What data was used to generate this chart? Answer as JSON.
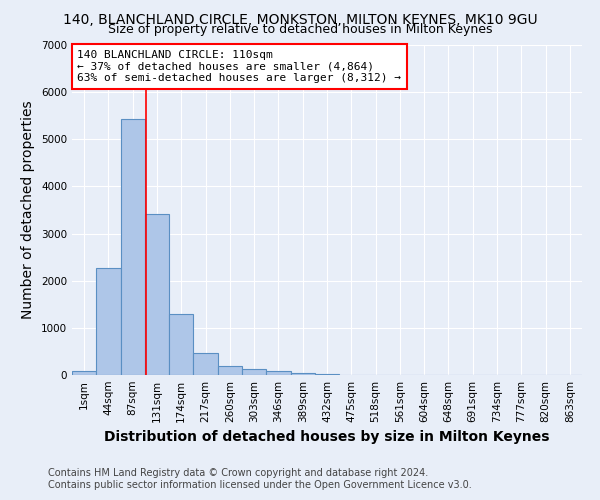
{
  "title": "140, BLANCHLAND CIRCLE, MONKSTON, MILTON KEYNES, MK10 9GU",
  "subtitle": "Size of property relative to detached houses in Milton Keynes",
  "xlabel": "Distribution of detached houses by size in Milton Keynes",
  "ylabel": "Number of detached properties",
  "footer_line1": "Contains HM Land Registry data © Crown copyright and database right 2024.",
  "footer_line2": "Contains public sector information licensed under the Open Government Licence v3.0.",
  "bar_labels": [
    "1sqm",
    "44sqm",
    "87sqm",
    "131sqm",
    "174sqm",
    "217sqm",
    "260sqm",
    "303sqm",
    "346sqm",
    "389sqm",
    "432sqm",
    "475sqm",
    "518sqm",
    "561sqm",
    "604sqm",
    "648sqm",
    "691sqm",
    "734sqm",
    "777sqm",
    "820sqm",
    "863sqm"
  ],
  "bar_values": [
    75,
    2270,
    5430,
    3420,
    1290,
    460,
    185,
    130,
    80,
    45,
    20,
    0,
    0,
    0,
    0,
    0,
    0,
    0,
    0,
    0,
    0
  ],
  "bar_color": "#aec6e8",
  "bar_edgecolor": "#5a8fc3",
  "ylim": [
    0,
    7000
  ],
  "yticks": [
    0,
    1000,
    2000,
    3000,
    4000,
    5000,
    6000,
    7000
  ],
  "red_line_x": 2.55,
  "annotation_text_line1": "140 BLANCHLAND CIRCLE: 110sqm",
  "annotation_text_line2": "← 37% of detached houses are smaller (4,864)",
  "annotation_text_line3": "63% of semi-detached houses are larger (8,312) →",
  "background_color": "#e8eef8",
  "grid_color": "#ffffff",
  "title_fontsize": 10,
  "subtitle_fontsize": 9,
  "axis_label_fontsize": 10,
  "tick_fontsize": 7.5,
  "footer_fontsize": 7
}
